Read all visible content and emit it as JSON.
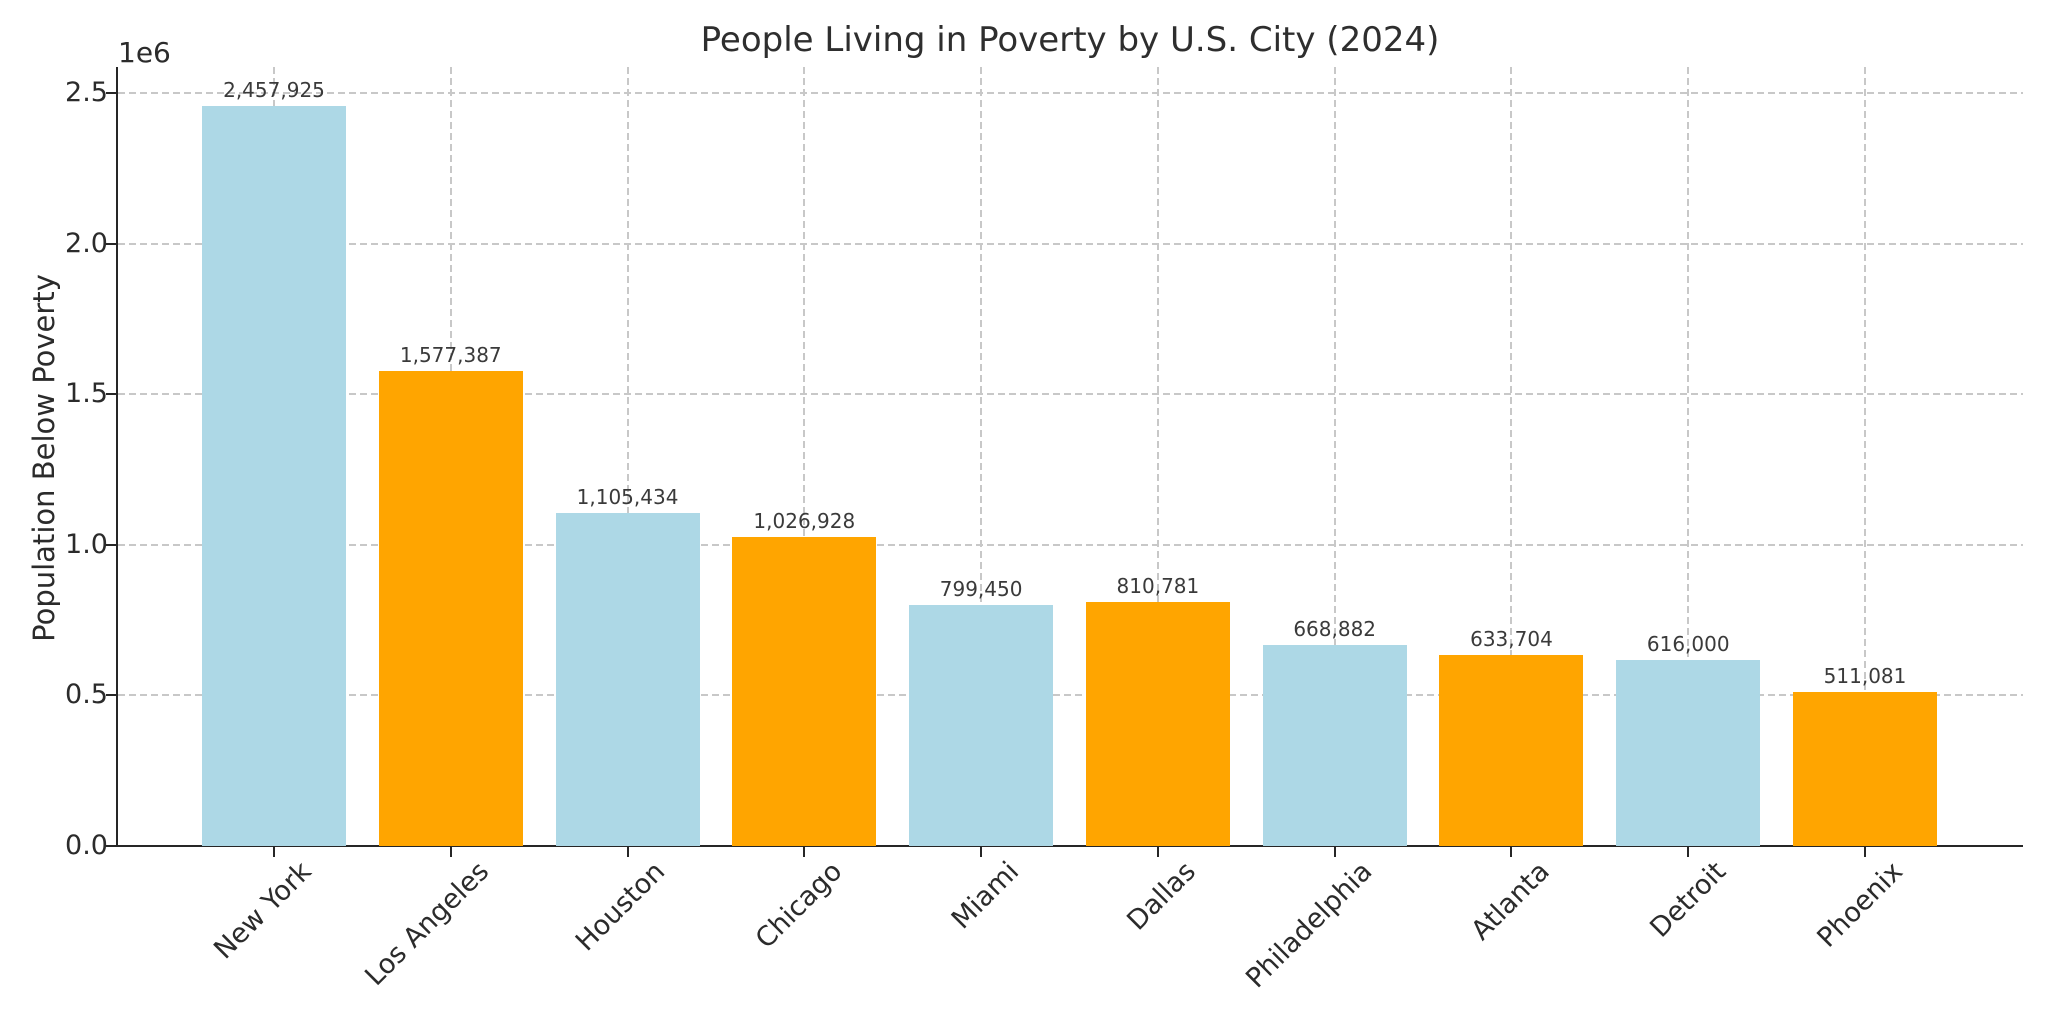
{
  "chart_data": {
    "type": "bar",
    "title": "People Living in Poverty by U.S. City (2024)",
    "xlabel": "",
    "ylabel": "Population Below Poverty",
    "offset_text": "1e6",
    "categories": [
      "New York",
      "Los Angeles",
      "Houston",
      "Chicago",
      "Miami",
      "Dallas",
      "Philadelphia",
      "Atlanta",
      "Detroit",
      "Phoenix"
    ],
    "values": [
      2457925,
      1577387,
      1105434,
      1026928,
      799450,
      810781,
      668882,
      633704,
      616000,
      511081
    ],
    "value_labels": [
      "2,457,925",
      "1,577,387",
      "1,105,434",
      "1,026,928",
      "799,450",
      "810,781",
      "668,882",
      "633,704",
      "616,000",
      "511,081"
    ],
    "bar_colors": [
      "#ADD8E6",
      "#FFA500",
      "#ADD8E6",
      "#FFA500",
      "#ADD8E6",
      "#FFA500",
      "#ADD8E6",
      "#FFA500",
      "#ADD8E6",
      "#FFA500"
    ],
    "y_ticks": [
      "0.0",
      "0.5",
      "1.0",
      "1.5",
      "2.0",
      "2.5"
    ],
    "y_tick_values": [
      0,
      500000,
      1000000,
      1500000,
      2000000,
      2500000
    ],
    "ylim": [
      0,
      2576000
    ],
    "grid": true,
    "grid_style": "dashed",
    "legend": null,
    "colors": {
      "bar_light_blue": "#ADD8E6",
      "bar_orange": "#FFA500",
      "grid": "#c8c8c8",
      "axis": "#262626",
      "text": "#2b2b2b",
      "background": "#ffffff"
    }
  }
}
